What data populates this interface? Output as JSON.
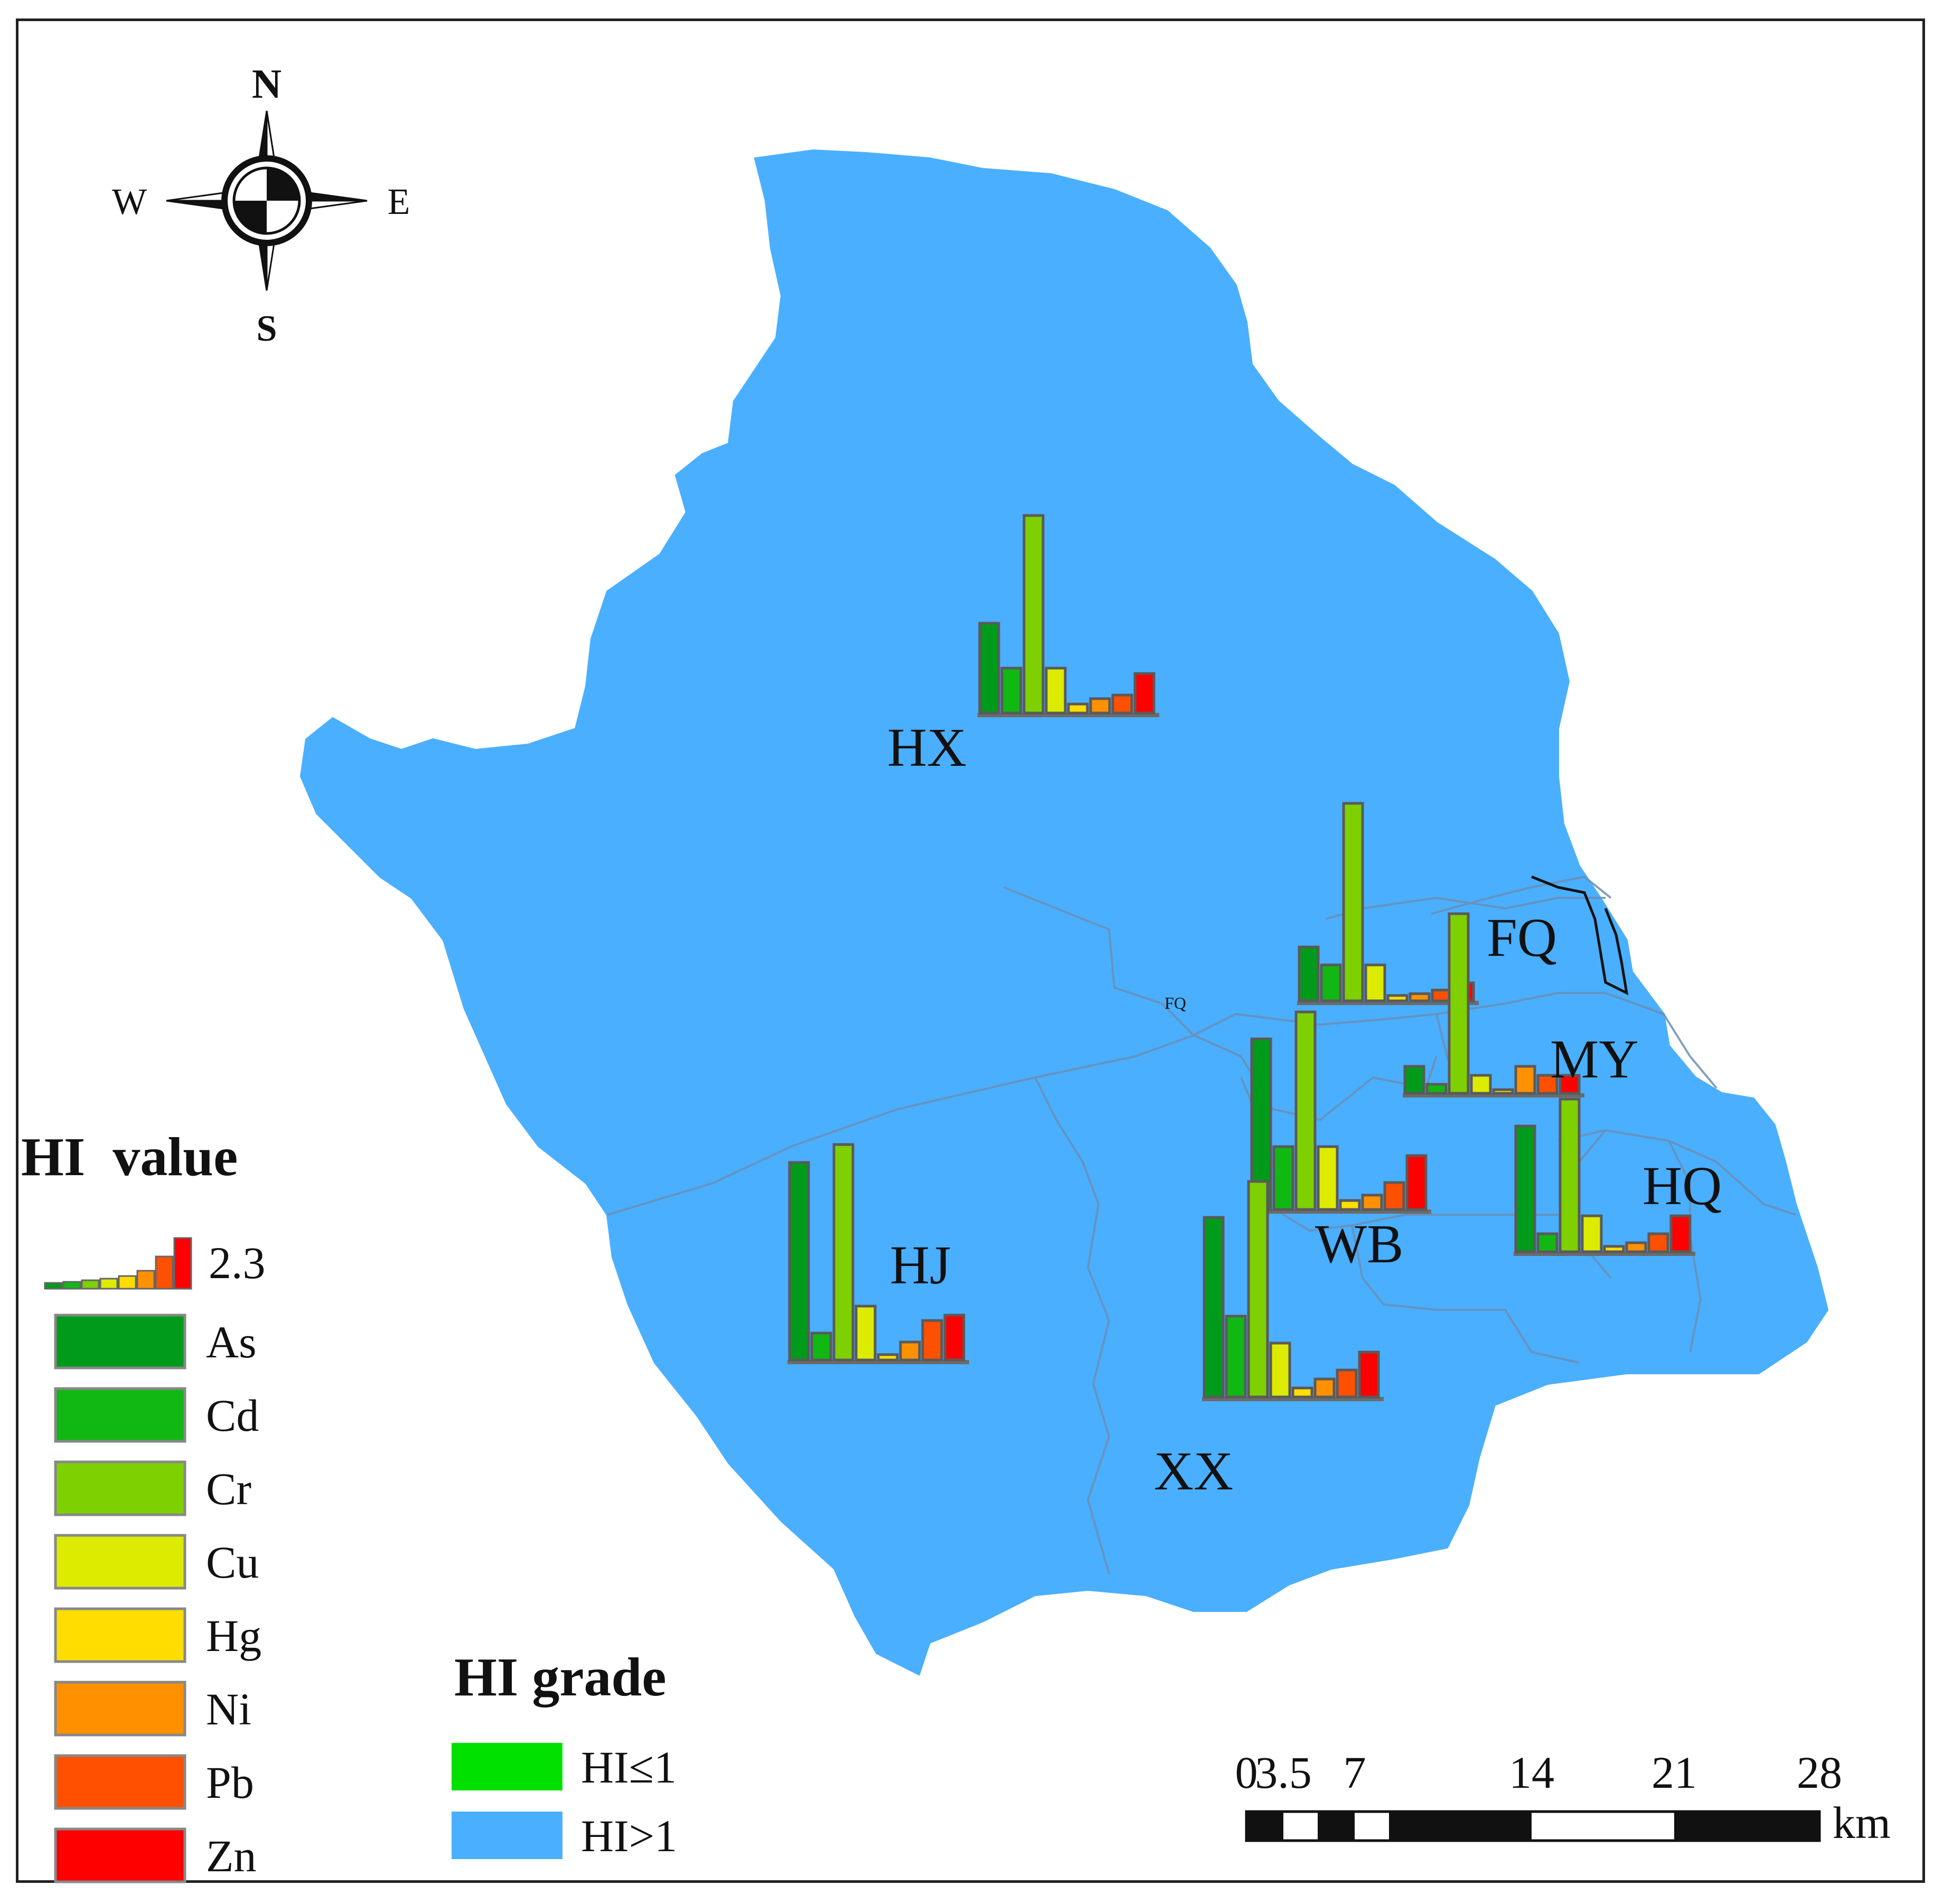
{
  "compass": {
    "n": "N",
    "s": "S",
    "e": "E",
    "w": "W"
  },
  "colors": {
    "water_area": "#4AAFFF",
    "hi_low": "#00E100",
    "As": "#009B1A",
    "Cd": "#11B814",
    "Cr": "#7ED000",
    "Cu": "#DCEB00",
    "Hg": "#FFDD00",
    "Ni": "#FF9100",
    "Pb": "#FF5000",
    "Zn": "#FF0000"
  },
  "districts": [
    {
      "id": "HX",
      "label": "HX"
    },
    {
      "id": "FQ",
      "label": "FQ"
    },
    {
      "id": "MY",
      "label": "MY"
    },
    {
      "id": "HQ",
      "label": "HQ"
    },
    {
      "id": "WB",
      "label": "WB"
    },
    {
      "id": "HJ",
      "label": "HJ"
    },
    {
      "id": "XX",
      "label": "XX"
    }
  ],
  "small_label": "FQ",
  "hi_value_legend": {
    "title": "HI  value",
    "max_label": "2.3",
    "items": [
      {
        "key": "As",
        "label": "As"
      },
      {
        "key": "Cd",
        "label": "Cd"
      },
      {
        "key": "Cr",
        "label": "Cr"
      },
      {
        "key": "Cu",
        "label": "Cu"
      },
      {
        "key": "Hg",
        "label": "Hg"
      },
      {
        "key": "Ni",
        "label": "Ni"
      },
      {
        "key": "Pb",
        "label": "Pb"
      },
      {
        "key": "Zn",
        "label": "Zn"
      }
    ]
  },
  "hi_grade_legend": {
    "title": "HI grade",
    "items": [
      {
        "label": "HI≤1",
        "color_key": "hi_low"
      },
      {
        "label": "HI>1",
        "color_key": "water_area"
      }
    ]
  },
  "scale_bar": {
    "ticks": [
      "0",
      "3.5",
      "7",
      "14",
      "21",
      "28"
    ],
    "unit": "km"
  },
  "chart_data": {
    "type": "bar",
    "note_scale_max": 2.3,
    "categories": [
      "As",
      "Cd",
      "Cr",
      "Cu",
      "Hg",
      "Ni",
      "Pb",
      "Zn"
    ],
    "series": [
      {
        "name": "HX",
        "values": [
          0.5,
          0.25,
          1.1,
          0.25,
          0.05,
          0.08,
          0.1,
          0.22
        ]
      },
      {
        "name": "FQ",
        "values": [
          0.3,
          0.2,
          1.1,
          0.2,
          0.03,
          0.04,
          0.06,
          0.1
        ]
      },
      {
        "name": "MY",
        "values": [
          0.15,
          0.05,
          1.0,
          0.1,
          0.02,
          0.15,
          0.1,
          0.1
        ]
      },
      {
        "name": "WB",
        "values": [
          0.95,
          0.35,
          1.1,
          0.35,
          0.05,
          0.08,
          0.15,
          0.3
        ]
      },
      {
        "name": "HQ",
        "values": [
          0.7,
          0.1,
          0.85,
          0.2,
          0.03,
          0.05,
          0.1,
          0.2
        ]
      },
      {
        "name": "HJ",
        "values": [
          1.1,
          0.15,
          1.2,
          0.3,
          0.03,
          0.1,
          0.22,
          0.25
        ]
      },
      {
        "name": "XX",
        "values": [
          1.0,
          0.45,
          1.2,
          0.3,
          0.05,
          0.1,
          0.15,
          0.25
        ]
      }
    ]
  }
}
